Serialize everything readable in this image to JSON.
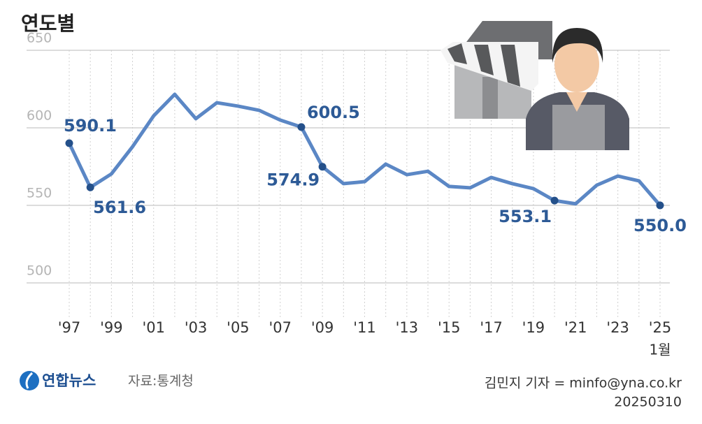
{
  "chart_data": {
    "type": "line",
    "title": "연도별",
    "categories": [
      "'97",
      null,
      "'99",
      null,
      "'01",
      null,
      "'03",
      null,
      "'05",
      null,
      "'07",
      null,
      "'09",
      null,
      "'11",
      null,
      "'13",
      null,
      "'15",
      null,
      "'17",
      null,
      "'19",
      null,
      "'21",
      null,
      "'23",
      null,
      "'25"
    ],
    "x_note": "1월",
    "series": [
      {
        "color": "#5b87c5",
        "values": [
          590.1,
          561.6,
          570.3,
          587.8,
          607.7,
          621.6,
          605.9,
          616.2,
          614,
          611.3,
          605,
          600.5,
          574.9,
          564,
          565.3,
          576.6,
          569.8,
          572,
          562.2,
          561.3,
          568,
          564,
          560.8,
          553.1,
          551,
          563,
          568.9,
          565.8,
          550
        ],
        "value_labels": [
          "590.1",
          "561.6",
          null,
          null,
          null,
          null,
          null,
          null,
          null,
          null,
          null,
          "600.5",
          "574.9",
          null,
          null,
          null,
          null,
          null,
          null,
          null,
          null,
          null,
          null,
          "553.1",
          null,
          null,
          null,
          null,
          "550.0"
        ]
      }
    ],
    "ylim": [
      500,
      650
    ],
    "yticks": [
      500,
      550,
      600,
      650
    ],
    "grid": true
  },
  "footer": {
    "logo": "연합뉴스",
    "source": "자료:통계청",
    "credit": "김민지 기자 = minfo@yna.co.kr",
    "date": "20250310"
  }
}
